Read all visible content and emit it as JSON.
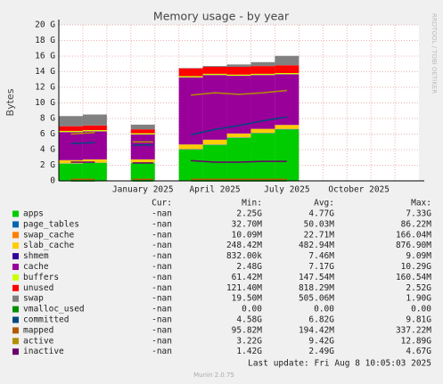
{
  "chart_data": {
    "type": "area",
    "title": "Memory usage - by year",
    "y_label": "Bytes",
    "side_text": "RRDTOOL / TOBI OETIKER",
    "last_update": "Last update: Fri Aug  8 10:05:03 2025",
    "footer": "Munin 2.0.75",
    "legend_headers": [
      "Cur:",
      "Min:",
      "Avg:",
      "Max:"
    ],
    "categories": [
      null,
      null,
      null,
      "January 2025",
      null,
      null,
      "April 2025",
      null,
      null,
      "July 2025",
      null,
      null,
      "October 2025",
      null,
      null
    ],
    "ylim": [
      0,
      20
    ],
    "yticks": [
      {
        "value": 0,
        "label": "0"
      },
      {
        "value": 2,
        "label": "2 G"
      },
      {
        "value": 4,
        "label": "4 G"
      },
      {
        "value": 6,
        "label": "6 G"
      },
      {
        "value": 8,
        "label": "8 G"
      },
      {
        "value": 10,
        "label": "10 G"
      },
      {
        "value": 12,
        "label": "12 G"
      },
      {
        "value": 14,
        "label": "14 G"
      },
      {
        "value": 16,
        "label": "16 G"
      },
      {
        "value": 18,
        "label": "18 G"
      },
      {
        "value": 20,
        "label": "20 G"
      }
    ],
    "grid": true,
    "series": [
      {
        "name": "apps",
        "color": "#00cc00",
        "stack": true,
        "values": [
          2.2,
          2.3,
          null,
          2.3,
          null,
          4.0,
          4.6,
          5.5,
          6.1,
          6.6,
          null,
          null,
          null,
          null,
          null
        ],
        "cur": "-nan",
        "min": "2.25G",
        "avg": "4.77G",
        "max": "7.33G"
      },
      {
        "name": "page_tables",
        "color": "#0066b3",
        "stack": true,
        "values": [
          0.03,
          0.03,
          null,
          0.03,
          null,
          0.05,
          0.05,
          0.05,
          0.05,
          0.05,
          null,
          null,
          null,
          null,
          null
        ],
        "cur": "-nan",
        "min": "32.70M",
        "avg": "50.03M",
        "max": "86.22M"
      },
      {
        "name": "swap_cache",
        "color": "#ff8000",
        "stack": true,
        "values": [
          0.02,
          0.02,
          null,
          0.02,
          null,
          0.02,
          0.02,
          0.02,
          0.02,
          0.02,
          null,
          null,
          null,
          null,
          null
        ],
        "cur": "-nan",
        "min": "10.09M",
        "avg": "22.71M",
        "max": "166.04M"
      },
      {
        "name": "slab_cache",
        "color": "#ffcc00",
        "stack": true,
        "values": [
          0.4,
          0.4,
          null,
          0.4,
          null,
          0.6,
          0.6,
          0.5,
          0.5,
          0.5,
          null,
          null,
          null,
          null,
          null
        ],
        "cur": "-nan",
        "min": "248.42M",
        "avg": "482.94M",
        "max": "876.90M"
      },
      {
        "name": "shmem",
        "color": "#330099",
        "stack": true,
        "values": [
          0.01,
          0.01,
          null,
          0.01,
          null,
          0.01,
          0.01,
          0.01,
          0.01,
          0.01,
          null,
          null,
          null,
          null,
          null
        ],
        "cur": "-nan",
        "min": "832.00k",
        "avg": "7.46M",
        "max": "9.09M"
      },
      {
        "name": "cache",
        "color": "#990099",
        "stack": true,
        "values": [
          3.6,
          3.6,
          null,
          3.2,
          null,
          8.6,
          8.3,
          7.4,
          6.9,
          6.5,
          null,
          null,
          null,
          null,
          null
        ],
        "cur": "-nan",
        "min": "2.48G",
        "avg": "7.17G",
        "max": "10.29G"
      },
      {
        "name": "buffers",
        "color": "#ccff00",
        "stack": true,
        "values": [
          0.15,
          0.15,
          null,
          0.15,
          null,
          0.15,
          0.15,
          0.15,
          0.15,
          0.15,
          null,
          null,
          null,
          null,
          null
        ],
        "cur": "-nan",
        "min": "61.42M",
        "avg": "147.54M",
        "max": "160.54M"
      },
      {
        "name": "unused",
        "color": "#ff0000",
        "stack": true,
        "values": [
          0.6,
          0.6,
          null,
          0.5,
          null,
          1.0,
          0.9,
          1.0,
          1.0,
          1.0,
          null,
          null,
          null,
          null,
          null
        ],
        "cur": "-nan",
        "min": "121.40M",
        "avg": "818.29M",
        "max": "2.52G"
      },
      {
        "name": "swap",
        "color": "#808080",
        "stack": true,
        "values": [
          1.3,
          1.4,
          null,
          0.6,
          null,
          0.05,
          0.1,
          0.3,
          0.5,
          1.2,
          null,
          null,
          null,
          null,
          null
        ],
        "cur": "-nan",
        "min": "19.50M",
        "avg": "505.06M",
        "max": "1.90G"
      },
      {
        "name": "vmalloc_used",
        "color": "#008f00",
        "stack": false,
        "values": [
          0,
          0,
          null,
          0,
          null,
          0,
          0,
          0,
          0,
          0,
          null,
          null,
          null,
          null,
          null
        ],
        "cur": "-nan",
        "min": "0.00",
        "avg": "0.00",
        "max": "0.00"
      },
      {
        "name": "committed",
        "color": "#00487d",
        "stack": false,
        "values": [
          4.8,
          4.9,
          null,
          4.6,
          null,
          5.9,
          6.6,
          7.1,
          7.7,
          8.2,
          null,
          null,
          null,
          null,
          null
        ],
        "cur": "-nan",
        "min": "4.58G",
        "avg": "6.82G",
        "max": "9.81G"
      },
      {
        "name": "mapped",
        "color": "#b35a00",
        "stack": false,
        "values": [
          0.2,
          0.2,
          null,
          0.2,
          null,
          0.2,
          0.2,
          0.2,
          0.2,
          0.2,
          null,
          null,
          null,
          null,
          null
        ],
        "cur": "-nan",
        "min": "95.82M",
        "avg": "194.42M",
        "max": "337.22M"
      },
      {
        "name": "active",
        "color": "#b38f00",
        "stack": false,
        "values": [
          6.0,
          6.2,
          null,
          5.0,
          null,
          11.0,
          11.3,
          11.1,
          11.3,
          11.6,
          null,
          null,
          null,
          null,
          null
        ],
        "cur": "-nan",
        "min": "3.22G",
        "avg": "9.42G",
        "max": "12.89G"
      },
      {
        "name": "inactive",
        "color": "#6b006b",
        "stack": false,
        "values": [
          2.4,
          2.4,
          null,
          2.3,
          null,
          2.6,
          2.4,
          2.4,
          2.5,
          2.5,
          null,
          null,
          null,
          null,
          null
        ],
        "cur": "-nan",
        "min": "1.42G",
        "avg": "2.49G",
        "max": "4.67G"
      }
    ]
  }
}
